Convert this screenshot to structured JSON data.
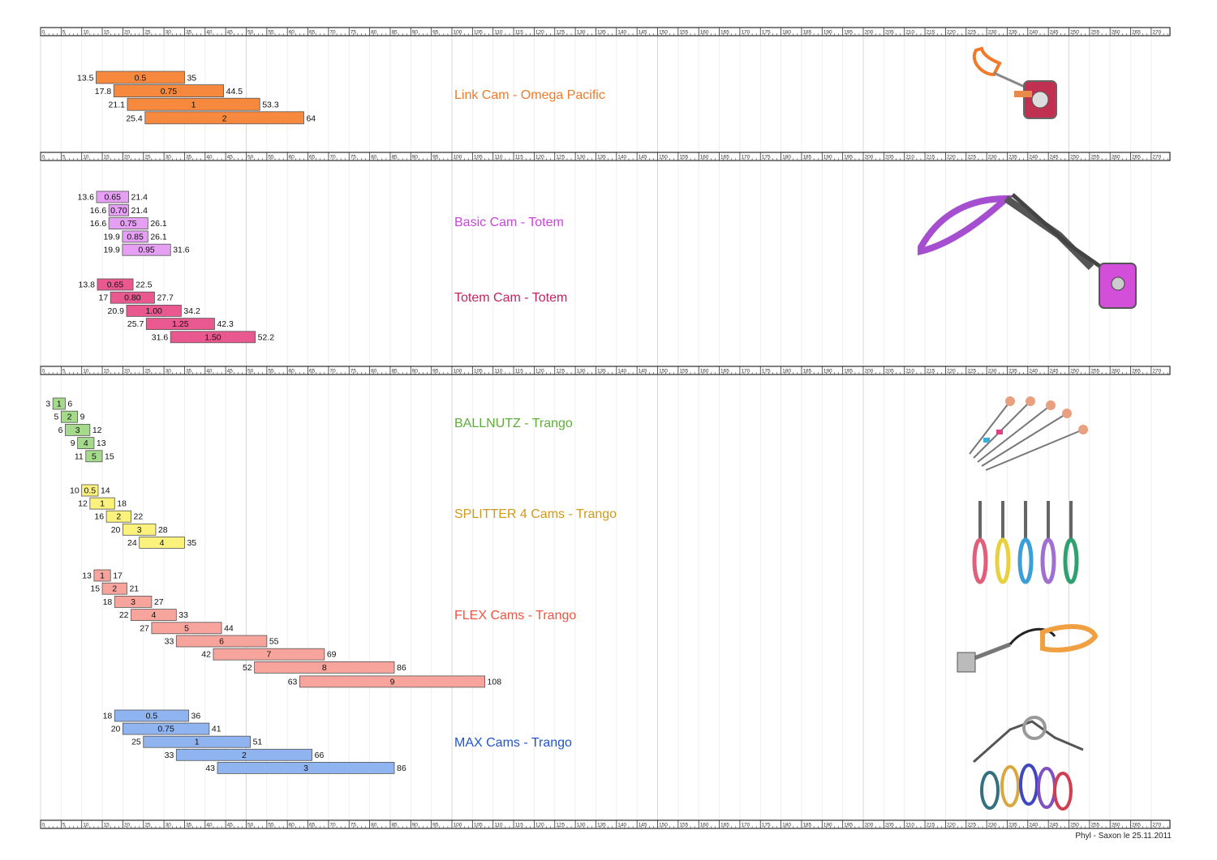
{
  "footer": "Phyl - Saxon le 25.11.2011",
  "scale": {
    "min": 0,
    "max": 275,
    "labels": [
      0,
      5,
      10,
      15,
      20,
      25,
      30,
      35,
      40,
      45,
      50,
      55,
      60,
      65,
      70,
      75,
      80,
      85,
      90,
      95,
      100,
      105,
      110,
      115,
      120,
      125,
      130,
      135,
      140,
      145,
      150,
      155,
      160,
      165,
      170,
      175,
      180,
      185,
      190,
      195,
      200,
      205,
      210,
      215,
      220,
      225,
      230,
      235,
      240,
      245,
      250,
      255,
      260,
      265,
      270
    ]
  },
  "chart_data": {
    "type": "bar",
    "groups": [
      {
        "title": "Link Cam -  Omega Pacific",
        "color": "#f7893f",
        "title_color": "#f07a2a",
        "series": [
          {
            "name": "0.5",
            "min": 13.5,
            "max": 35
          },
          {
            "name": "0.75",
            "min": 17.8,
            "max": 44.5
          },
          {
            "name": "1",
            "min": 21.1,
            "max": 53.3
          },
          {
            "name": "2",
            "min": 25.4,
            "max": 64
          }
        ]
      },
      {
        "title": "Basic Cam -  Totem",
        "color": "#e6a0f3",
        "title_color": "#cc44dd",
        "series": [
          {
            "name": "0.65",
            "min": 13.6,
            "max": 21.4
          },
          {
            "name": "0.70",
            "min": 16.6,
            "max": 21.4
          },
          {
            "name": "0.75",
            "min": 16.6,
            "max": 26.1
          },
          {
            "name": "0.85",
            "min": 19.9,
            "max": 26.1
          },
          {
            "name": "0.95",
            "min": 19.9,
            "max": 31.6
          }
        ]
      },
      {
        "title": "Totem Cam -  Totem",
        "color": "#e9588f",
        "title_color": "#c0245f",
        "series": [
          {
            "name": "0.65",
            "min": 13.8,
            "max": 22.5
          },
          {
            "name": "0.80",
            "min": 17,
            "max": 27.7
          },
          {
            "name": "1.00",
            "min": 20.9,
            "max": 34.2
          },
          {
            "name": "1.25",
            "min": 25.7,
            "max": 42.3
          },
          {
            "name": "1.50",
            "min": 31.6,
            "max": 52.2
          }
        ]
      },
      {
        "title": "BALLNUTZ -  Trango",
        "color": "#a5d98c",
        "title_color": "#5fae3a",
        "series": [
          {
            "name": "1",
            "min": 3,
            "max": 6
          },
          {
            "name": "2",
            "min": 5,
            "max": 9
          },
          {
            "name": "3",
            "min": 6,
            "max": 12
          },
          {
            "name": "4",
            "min": 9,
            "max": 13
          },
          {
            "name": "5",
            "min": 11,
            "max": 15
          }
        ]
      },
      {
        "title": "SPLITTER 4 Cams -  Trango",
        "color": "#fbf27d",
        "title_color": "#d19a1a",
        "series": [
          {
            "name": "0.5",
            "min": 10,
            "max": 14
          },
          {
            "name": "1",
            "min": 12,
            "max": 18
          },
          {
            "name": "2",
            "min": 16,
            "max": 22
          },
          {
            "name": "3",
            "min": 20,
            "max": 28
          },
          {
            "name": "4",
            "min": 24,
            "max": 35
          }
        ]
      },
      {
        "title": "FLEX Cams -  Trango",
        "color": "#f7a59c",
        "title_color": "#ee5544",
        "series": [
          {
            "name": "1",
            "min": 13,
            "max": 17
          },
          {
            "name": "2",
            "min": 15,
            "max": 21
          },
          {
            "name": "3",
            "min": 18,
            "max": 27
          },
          {
            "name": "4",
            "min": 22,
            "max": 33
          },
          {
            "name": "5",
            "min": 27,
            "max": 44
          },
          {
            "name": "6",
            "min": 33,
            "max": 55
          },
          {
            "name": "7",
            "min": 42,
            "max": 69
          },
          {
            "name": "8",
            "min": 52,
            "max": 86
          },
          {
            "name": "9",
            "min": 63,
            "max": 108
          }
        ]
      },
      {
        "title": "MAX Cams -  Trango",
        "color": "#8fb4f0",
        "title_color": "#1f55cc",
        "series": [
          {
            "name": "0.5",
            "min": 18,
            "max": 36
          },
          {
            "name": "0.75",
            "min": 20,
            "max": 41
          },
          {
            "name": "1",
            "min": 25,
            "max": 51
          },
          {
            "name": "2",
            "min": 33,
            "max": 66
          },
          {
            "name": "3",
            "min": 43,
            "max": 86
          }
        ]
      }
    ]
  }
}
